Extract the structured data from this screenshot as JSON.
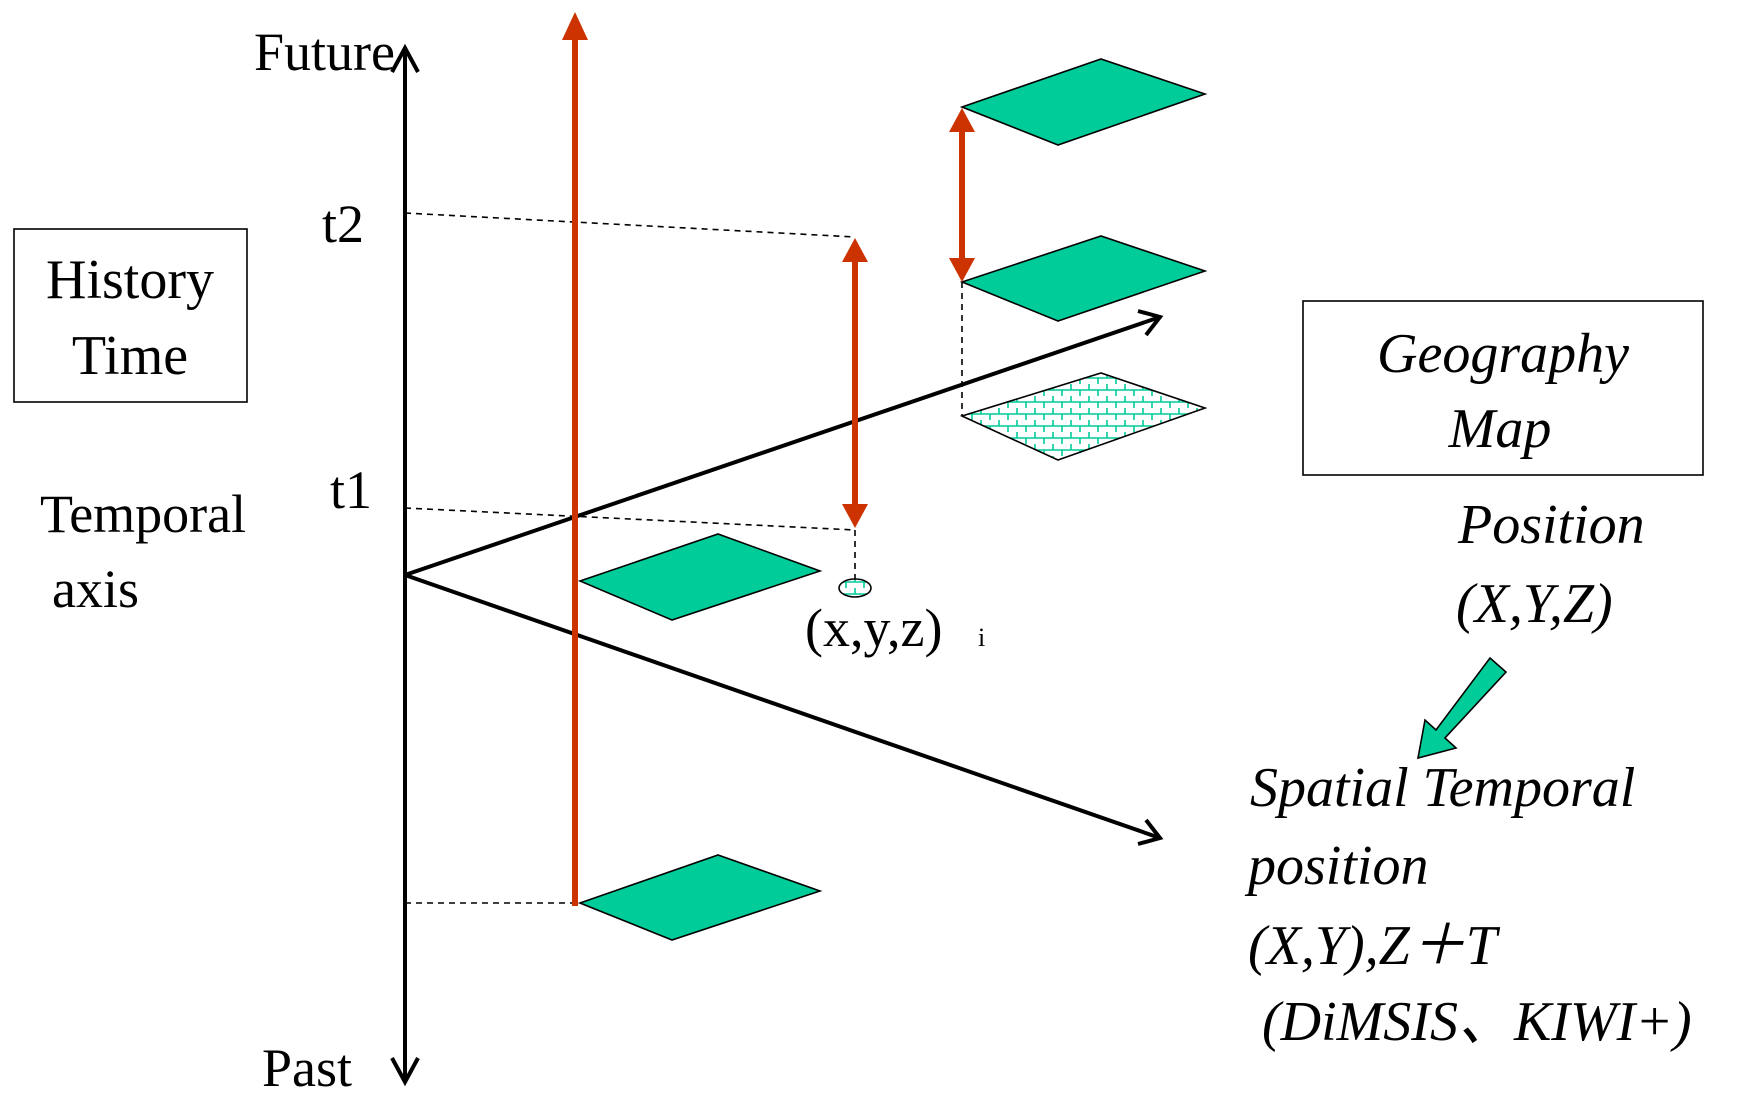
{
  "labels": {
    "future": "Future",
    "past": "Past",
    "t2": "t2",
    "t1": "t1",
    "temporal_axis_line1": "Temporal",
    "temporal_axis_line2": "axis",
    "history_time_line1": "History",
    "history_time_line2": "Time",
    "geography_map_line1": "Geography",
    "geography_map_line2": "Map",
    "position_line1": "Position",
    "position_line2": "(X,Y,Z)",
    "point_label": "(x,y,z)",
    "point_subscript": "i",
    "spatial_temporal_line1": "Spatial Temporal",
    "spatial_temporal_line2": "position",
    "spatial_temporal_line3": "(X,Y),Z＋T",
    "spatial_temporal_line4": "(DiMSIS、KIWI+)"
  },
  "colors": {
    "plane_fill": "#00cc99",
    "time_arrow": "#cc3300",
    "axis": "#000000",
    "hatch": "#00cc99"
  }
}
